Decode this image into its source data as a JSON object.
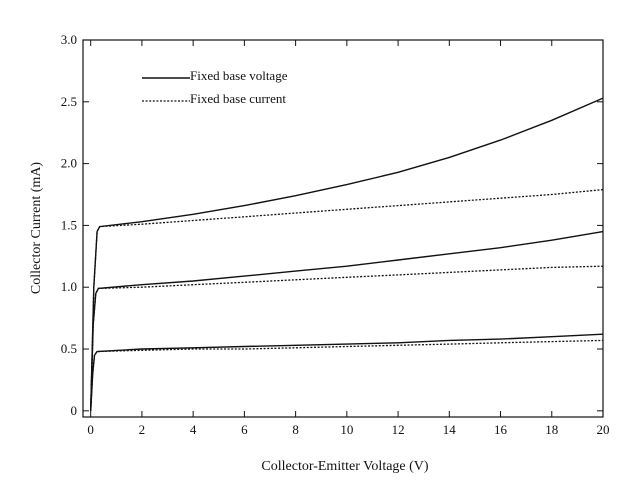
{
  "chart_data": {
    "type": "line",
    "title": "",
    "xlabel": "Collector-Emitter Voltage (V)",
    "ylabel": "Collector Current (mA)",
    "xlim": [
      -0.3,
      20
    ],
    "ylim": [
      -0.05,
      3.0
    ],
    "x_ticks": [
      0,
      2,
      4,
      6,
      8,
      10,
      12,
      14,
      16,
      18,
      20
    ],
    "x_tick_labels": [
      "0",
      "2",
      "4",
      "6",
      "8",
      "10",
      "12",
      "14",
      "16",
      "18",
      "20"
    ],
    "y_ticks": [
      0,
      0.5,
      1.0,
      1.5,
      2.0,
      2.5,
      3.0
    ],
    "y_tick_labels": [
      "0",
      "0.5",
      "1.0",
      "1.5",
      "2.0",
      "2.5",
      "3.0"
    ],
    "grid": false,
    "legend_position": "top-left",
    "legend": [
      {
        "label": "Fixed base voltage",
        "style": "solid"
      },
      {
        "label": "Fixed base current",
        "style": "dotted"
      }
    ],
    "series": [
      {
        "style": "solid",
        "x": [
          0,
          0.08,
          0.15,
          0.25,
          2,
          4,
          6,
          8,
          10,
          12,
          14,
          16,
          18,
          20
        ],
        "y": [
          0,
          0.3,
          0.45,
          0.48,
          0.5,
          0.51,
          0.52,
          0.53,
          0.54,
          0.55,
          0.57,
          0.58,
          0.6,
          0.62
        ]
      },
      {
        "style": "dotted",
        "x": [
          0,
          0.08,
          0.15,
          0.25,
          2,
          4,
          6,
          8,
          10,
          12,
          14,
          16,
          18,
          20
        ],
        "y": [
          0,
          0.3,
          0.45,
          0.48,
          0.49,
          0.5,
          0.5,
          0.51,
          0.52,
          0.53,
          0.54,
          0.55,
          0.56,
          0.57
        ]
      },
      {
        "style": "solid",
        "x": [
          0,
          0.1,
          0.2,
          0.3,
          2,
          4,
          6,
          8,
          10,
          12,
          14,
          16,
          18,
          20
        ],
        "y": [
          0,
          0.7,
          0.95,
          0.99,
          1.02,
          1.05,
          1.09,
          1.13,
          1.17,
          1.22,
          1.27,
          1.32,
          1.38,
          1.45
        ]
      },
      {
        "style": "dotted",
        "x": [
          0,
          0.1,
          0.2,
          0.3,
          2,
          4,
          6,
          8,
          10,
          12,
          14,
          16,
          18,
          20
        ],
        "y": [
          0,
          0.7,
          0.95,
          0.99,
          1.0,
          1.02,
          1.04,
          1.06,
          1.08,
          1.1,
          1.12,
          1.14,
          1.16,
          1.17
        ]
      },
      {
        "style": "solid",
        "x": [
          0,
          0.12,
          0.25,
          0.35,
          2,
          4,
          6,
          8,
          10,
          12,
          14,
          16,
          18,
          20
        ],
        "y": [
          0,
          1.0,
          1.45,
          1.49,
          1.53,
          1.59,
          1.66,
          1.74,
          1.83,
          1.93,
          2.05,
          2.19,
          2.35,
          2.53
        ]
      },
      {
        "style": "dotted",
        "x": [
          0,
          0.12,
          0.25,
          0.35,
          2,
          4,
          6,
          8,
          10,
          12,
          14,
          16,
          18,
          20
        ],
        "y": [
          0,
          1.0,
          1.45,
          1.49,
          1.51,
          1.54,
          1.57,
          1.6,
          1.63,
          1.66,
          1.69,
          1.72,
          1.75,
          1.79
        ]
      }
    ]
  }
}
